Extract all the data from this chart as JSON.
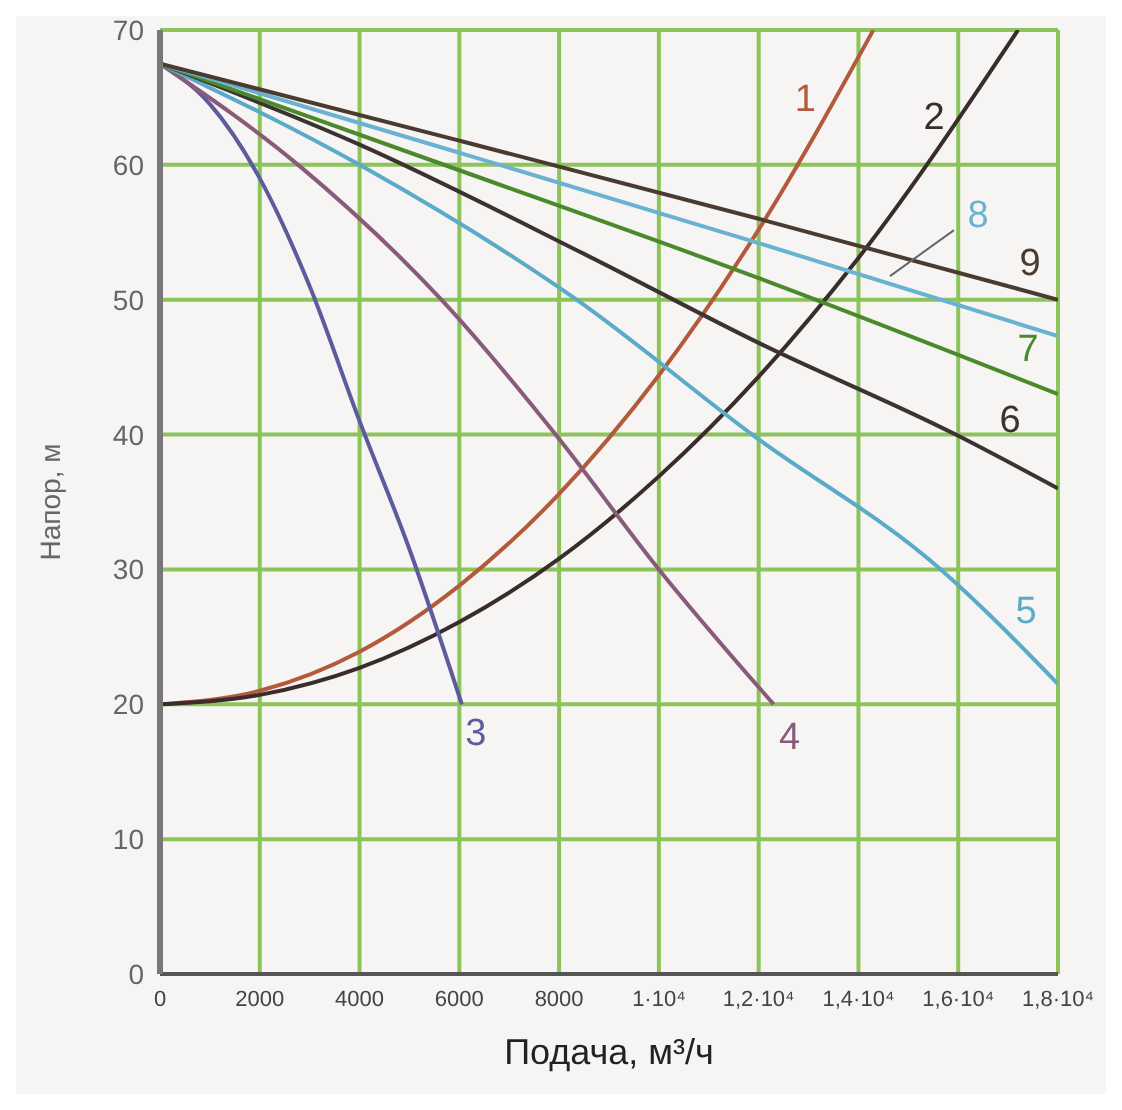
{
  "chart_data": {
    "type": "line",
    "xlabel": "Подача, м³/ч",
    "ylabel": "Напор, м",
    "xlim": [
      0,
      18000
    ],
    "ylim": [
      0,
      70
    ],
    "xticks": [
      0,
      2000,
      4000,
      6000,
      8000,
      {
        "value": 10000,
        "label": "1·10⁴"
      },
      {
        "value": 12000,
        "label": "1,2·10⁴"
      },
      {
        "value": 14000,
        "label": "1,4·10⁴"
      },
      {
        "value": 16000,
        "label": "1,6·10⁴"
      },
      {
        "value": 18000,
        "label": "1,8·10⁴"
      }
    ],
    "yticks": [
      0,
      10,
      20,
      30,
      40,
      50,
      60,
      70
    ],
    "grid": true,
    "marker": "none",
    "line_style": "solid",
    "series": [
      {
        "name": "1",
        "color": "#b35a3c",
        "x": [
          0,
          2000,
          4000,
          6000,
          8000,
          10000,
          12000,
          14300
        ],
        "values": [
          20,
          21,
          23.9,
          28.8,
          35.6,
          44.4,
          55.2,
          70
        ]
      },
      {
        "name": "2",
        "color": "#3a2c2c",
        "x": [
          0,
          2000,
          4000,
          6000,
          8000,
          10000,
          12000,
          14000,
          17200
        ],
        "values": [
          20,
          20.7,
          22.7,
          26.1,
          30.8,
          36.9,
          44.3,
          53.1,
          70
        ]
      },
      {
        "name": "3",
        "color": "#5c5c9c",
        "x": [
          0,
          1000,
          2000,
          3000,
          4000,
          5000,
          6050
        ],
        "values": [
          67.5,
          64.5,
          59,
          51,
          41,
          31.5,
          20
        ]
      },
      {
        "name": "4",
        "color": "#8a5a7a",
        "x": [
          0,
          2770,
          5640,
          7930,
          10000,
          12300
        ],
        "values": [
          67.5,
          60,
          50,
          40,
          30,
          20
        ]
      },
      {
        "name": "5",
        "color": "#5aaac8",
        "x": [
          0,
          4000,
          8350,
          11870,
          15650,
          18000
        ],
        "values": [
          67.5,
          60,
          50,
          40,
          30,
          21.5
        ]
      },
      {
        "name": "6",
        "color": "#3c3232",
        "x": [
          0,
          4000,
          8500,
          12000,
          15950,
          18000
        ],
        "values": [
          67.5,
          61.5,
          53.4,
          46.8,
          40,
          36
        ]
      },
      {
        "name": "7",
        "color": "#4a8a2c",
        "x": [
          0,
          6000,
          12000,
          18000
        ],
        "values": [
          67.5,
          59.6,
          51.6,
          43
        ]
      },
      {
        "name": "8",
        "color": "#6ab2d2",
        "x": [
          0,
          6000,
          12000,
          18000
        ],
        "values": [
          67.5,
          60.9,
          54.2,
          47.3
        ]
      },
      {
        "name": "9",
        "color": "#4a3a30",
        "x": [
          0,
          6000,
          12000,
          18000
        ],
        "values": [
          67.5,
          61.8,
          56,
          50
        ]
      }
    ]
  }
}
